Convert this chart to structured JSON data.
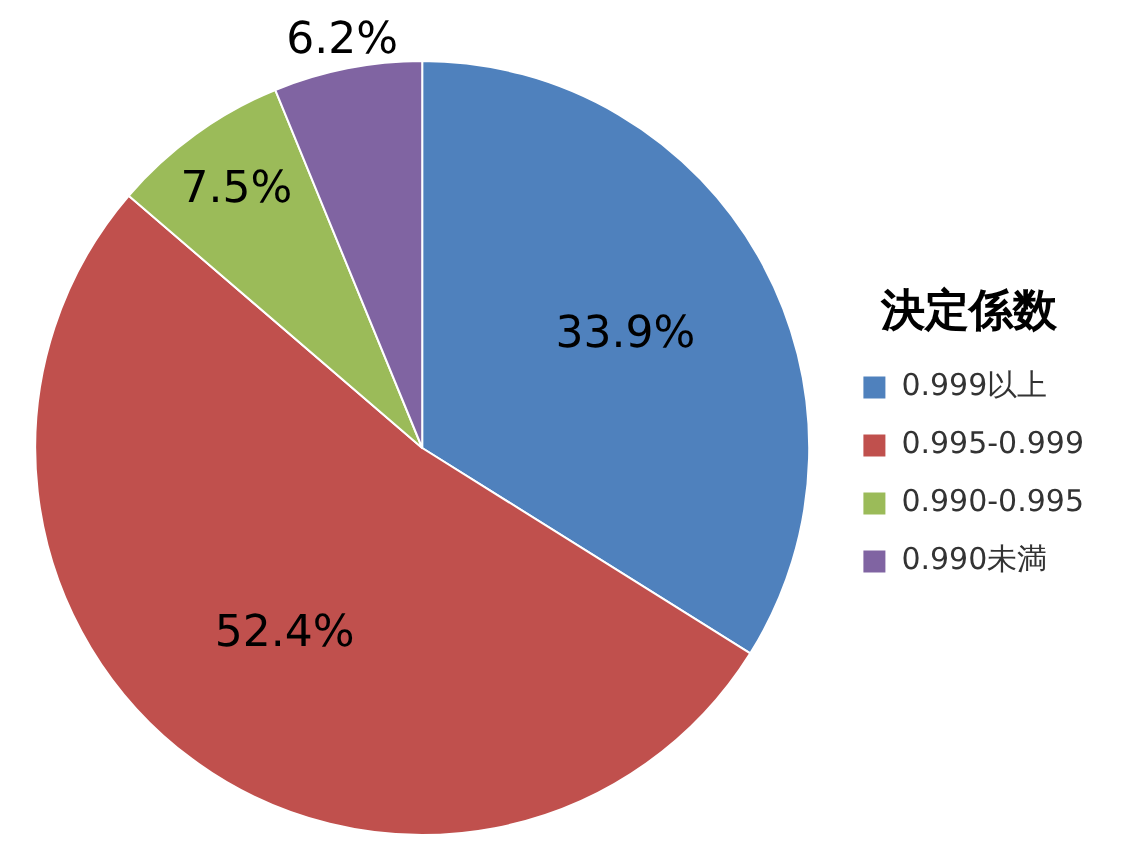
{
  "chart_data": {
    "type": "pie",
    "legend_title": "決定係数",
    "categories": [
      "0.999以上",
      "0.995-0.999",
      "0.990-0.995",
      "0.990未満"
    ],
    "values": [
      33.9,
      52.4,
      7.5,
      6.2
    ],
    "colors": [
      "#4f81bd",
      "#c0504d",
      "#9bbb59",
      "#8064a2"
    ],
    "value_labels": [
      "33.9%",
      "52.4%",
      "7.5%",
      "6.2%"
    ],
    "legend": "right"
  }
}
